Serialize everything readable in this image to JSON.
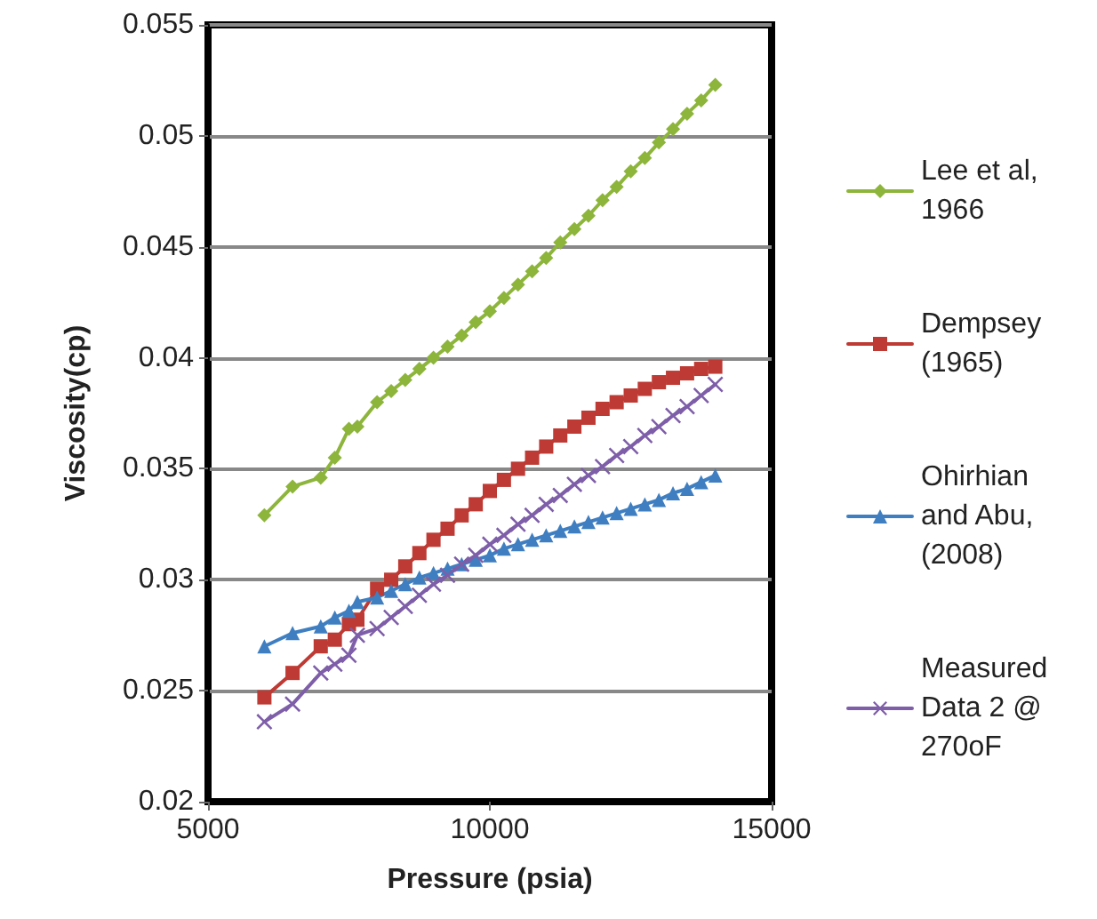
{
  "chart_data": {
    "type": "line",
    "xlabel": "Pressure (psia)",
    "ylabel": "Viscosity(cp)",
    "x": [
      6000,
      6500,
      7000,
      7250,
      7500,
      7650,
      8000,
      8250,
      8500,
      8750,
      9000,
      9250,
      9500,
      9750,
      10000,
      10250,
      10500,
      10750,
      11000,
      11250,
      11500,
      11750,
      12000,
      12250,
      12500,
      12750,
      13000,
      13250,
      13500,
      13750,
      14000
    ],
    "series": [
      {
        "name": "Lee et al,1966",
        "color": "#8db53c",
        "marker": "diamond",
        "values": [
          0.0329,
          0.0342,
          0.0346,
          0.0355,
          0.0368,
          0.0369,
          0.038,
          0.0385,
          0.039,
          0.0395,
          0.04,
          0.0405,
          0.041,
          0.0416,
          0.0421,
          0.0427,
          0.0433,
          0.0439,
          0.0445,
          0.0452,
          0.0458,
          0.0464,
          0.0471,
          0.0477,
          0.0484,
          0.049,
          0.0497,
          0.0503,
          0.051,
          0.0516,
          0.0523
        ]
      },
      {
        "name": "Dempsey (1965)",
        "color": "#be3a34",
        "marker": "square",
        "values": [
          0.0247,
          0.0258,
          0.027,
          0.0273,
          0.028,
          0.0282,
          0.0296,
          0.03,
          0.0306,
          0.0312,
          0.0318,
          0.0323,
          0.0329,
          0.0334,
          0.034,
          0.0345,
          0.035,
          0.0355,
          0.036,
          0.0365,
          0.0369,
          0.0373,
          0.0377,
          0.038,
          0.0383,
          0.0386,
          0.0389,
          0.0391,
          0.0393,
          0.0395,
          0.0396
        ]
      },
      {
        "name": "Ohirhian and Abu, (2008)",
        "color": "#3f7fc1",
        "marker": "triangle",
        "values": [
          0.027,
          0.0276,
          0.0279,
          0.0283,
          0.0286,
          0.029,
          0.0292,
          0.0295,
          0.0298,
          0.0301,
          0.0303,
          0.0305,
          0.0307,
          0.0309,
          0.0311,
          0.0314,
          0.0316,
          0.0318,
          0.032,
          0.0322,
          0.0324,
          0.0326,
          0.0328,
          0.033,
          0.0332,
          0.0334,
          0.0336,
          0.0339,
          0.0341,
          0.0344,
          0.0347
        ]
      },
      {
        "name": "Measured Data 2 @ 270oF",
        "color": "#7e5ea8",
        "marker": "cross",
        "values": [
          0.0236,
          0.0244,
          0.0258,
          0.0262,
          0.0266,
          0.0275,
          0.0278,
          0.0283,
          0.0288,
          0.0293,
          0.0298,
          0.0302,
          0.0307,
          0.0311,
          0.0316,
          0.032,
          0.0325,
          0.0329,
          0.0334,
          0.0338,
          0.0343,
          0.0347,
          0.0351,
          0.0356,
          0.036,
          0.0365,
          0.0369,
          0.0374,
          0.0378,
          0.0383,
          0.0388
        ]
      }
    ],
    "xlim": [
      5000,
      15000
    ],
    "xticks": [
      5000,
      10000,
      15000
    ],
    "ylim": [
      0.02,
      0.055
    ],
    "yticks": [
      0.02,
      0.025,
      0.03,
      0.035,
      0.04,
      0.045,
      0.05,
      0.055
    ],
    "grid": "y",
    "legend": "right",
    "line_style": "solid"
  }
}
